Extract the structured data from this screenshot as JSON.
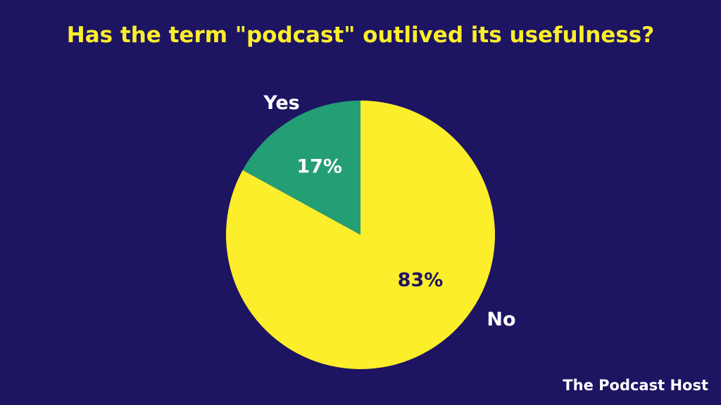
{
  "chart_data": {
    "type": "pie",
    "title": "Has the term \"podcast\" outlived its usefulness?",
    "slices": [
      {
        "label": "Yes",
        "value": 17,
        "value_label": "17%",
        "color": "#249e74",
        "text_color": "#ffffff"
      },
      {
        "label": "No",
        "value": 83,
        "value_label": "83%",
        "color": "#fcee2b",
        "text_color": "#1d1462"
      }
    ],
    "start": "12 o'clock, Yes counter-clockwise"
  },
  "background_color": "#1d1462",
  "logo_text": "The Podcast Host"
}
